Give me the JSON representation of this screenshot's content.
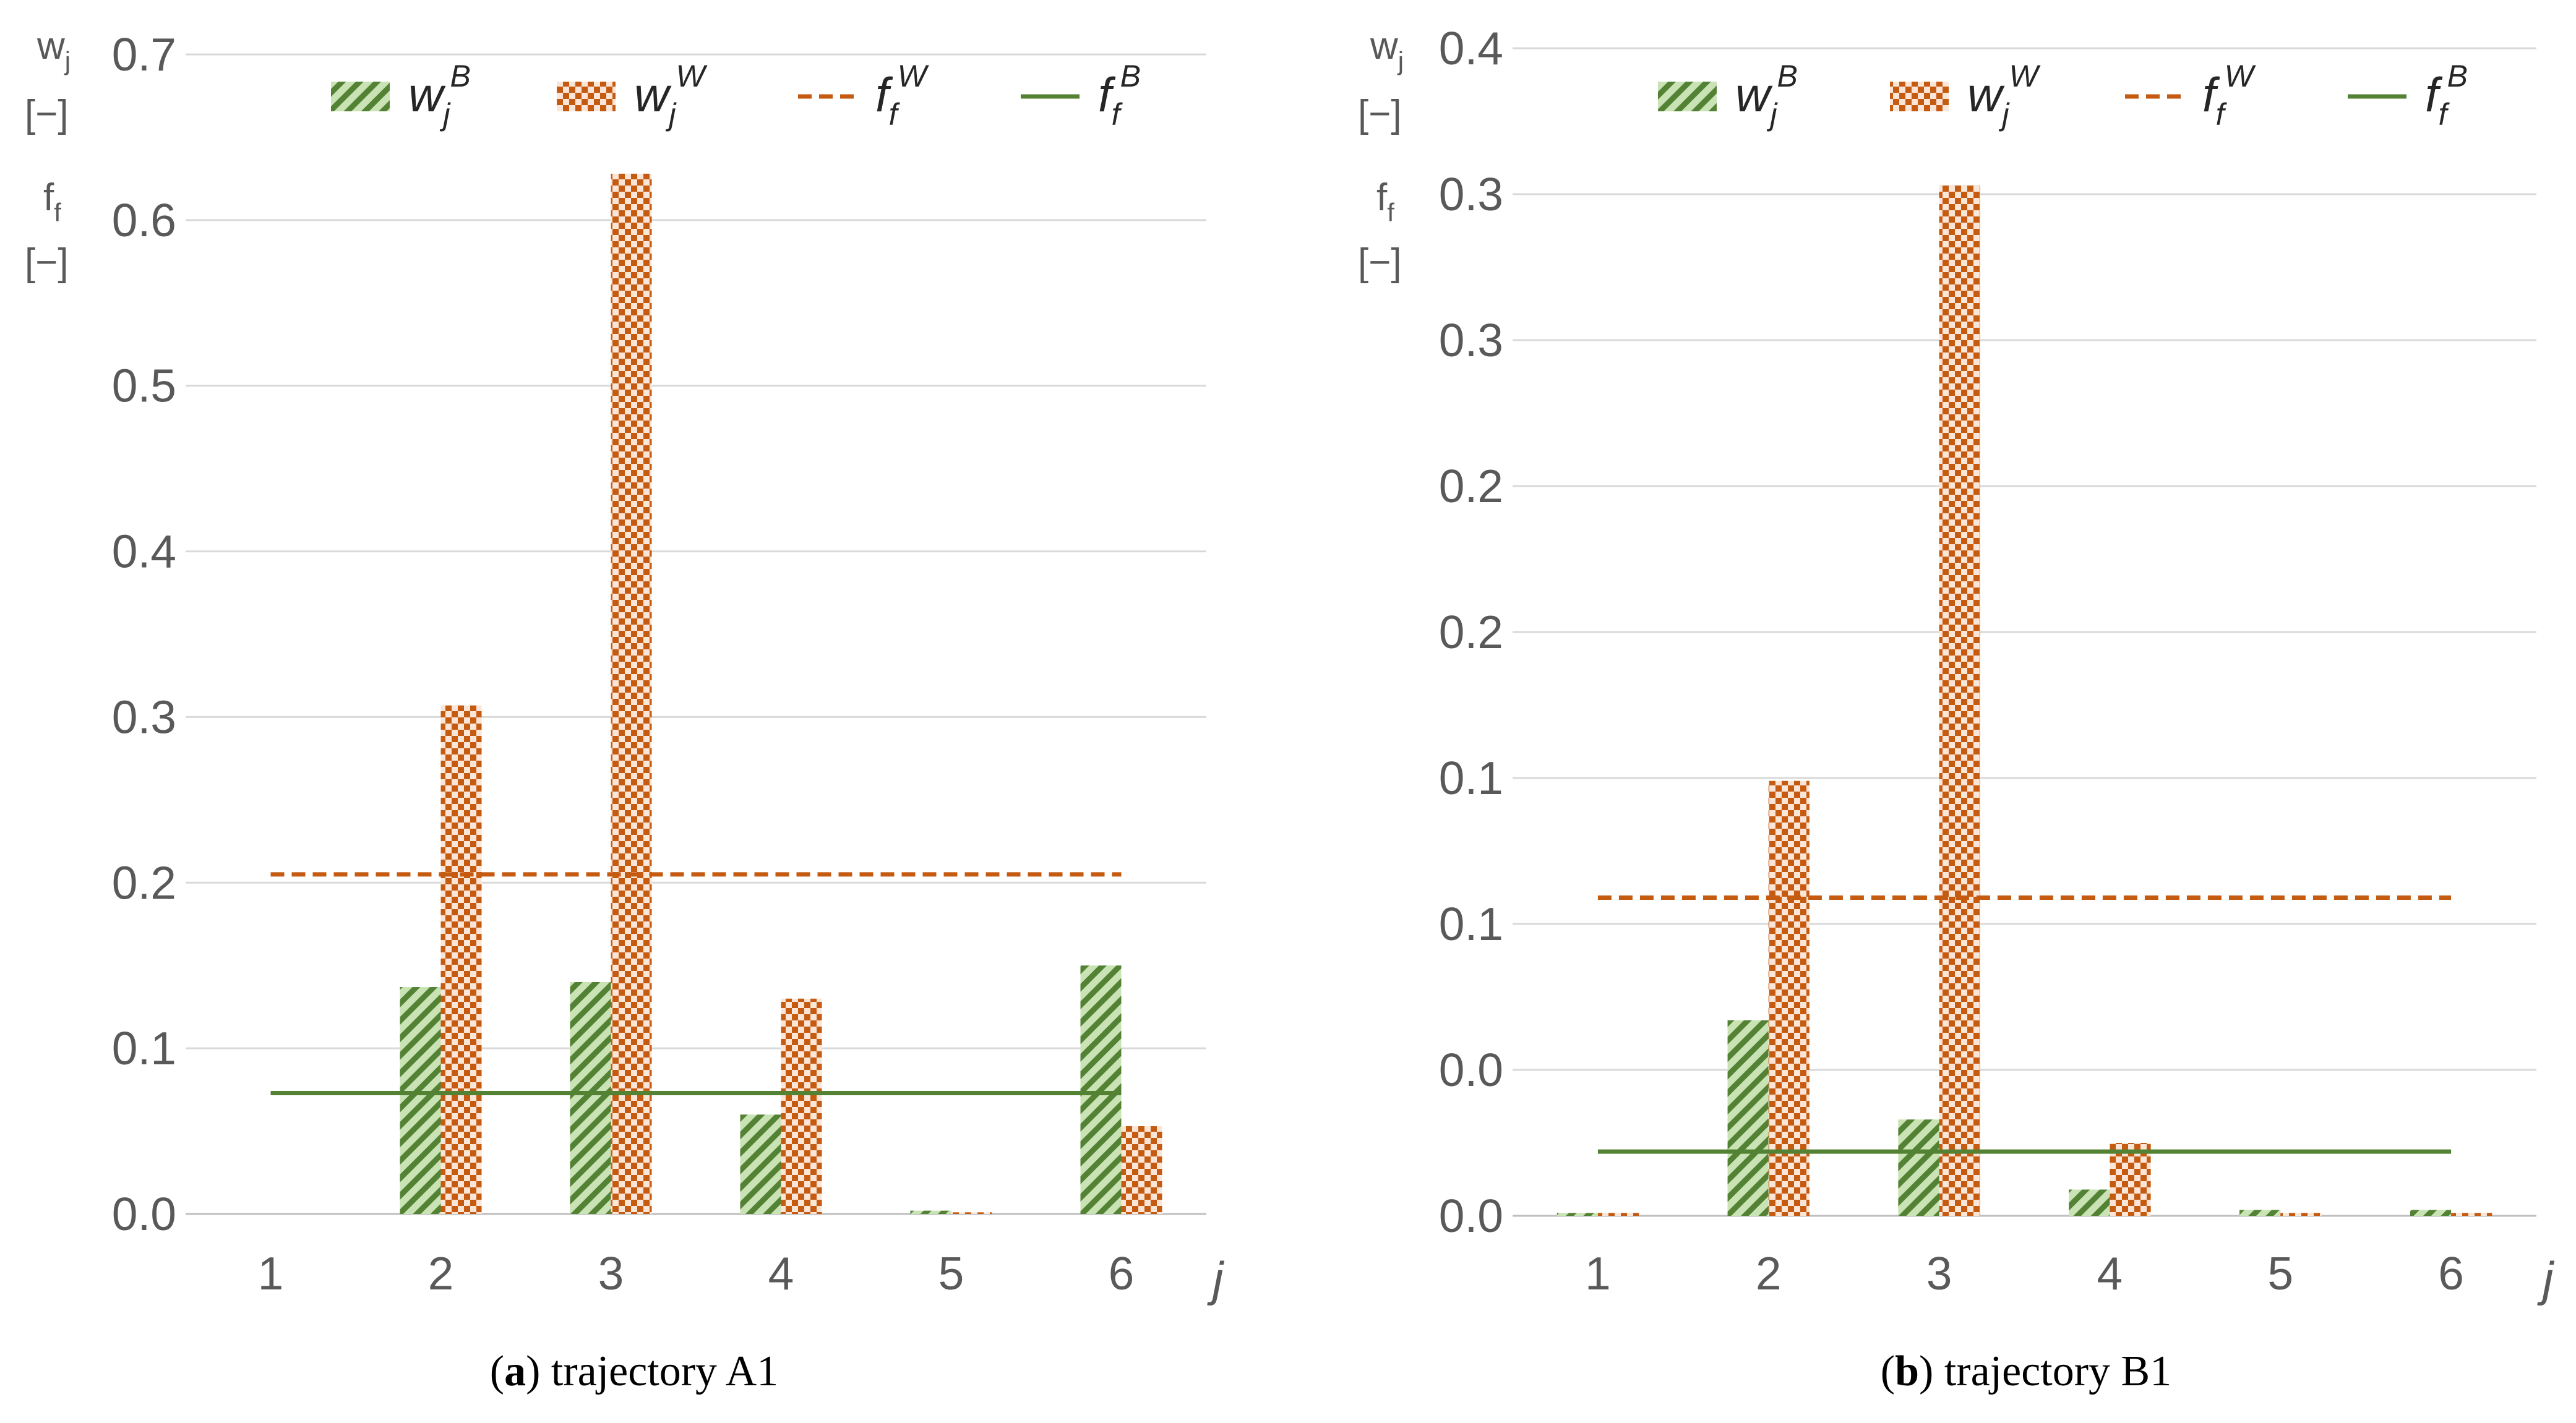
{
  "chart_data": [
    {
      "type": "bar",
      "panel_letter": "a",
      "caption_prefix": "(",
      "caption_suffix": ") trajectory A1",
      "categories": [
        "1",
        "2",
        "3",
        "4",
        "5",
        "6"
      ],
      "xlabel": "j",
      "ylabel": {
        "w": "w",
        "w_sub": "j",
        "w_unit": "[−]",
        "f": "f",
        "f_sub": "f",
        "f_unit": "[−]"
      },
      "ylim": [
        0,
        0.7
      ],
      "yticks": [
        "0.0",
        "0.1",
        "0.2",
        "0.3",
        "0.4",
        "0.5",
        "0.6",
        "0.7"
      ],
      "series": [
        {
          "name": "w_j^B",
          "label_base": "w",
          "label_sub": "j",
          "label_sup": "B",
          "kind": "bar",
          "pattern": "hatch-green",
          "values": [
            0.0,
            0.137,
            0.14,
            0.06,
            0.002,
            0.15
          ]
        },
        {
          "name": "w_j^W",
          "label_base": "w",
          "label_sub": "j",
          "label_sup": "W",
          "kind": "bar",
          "pattern": "check-orange",
          "values": [
            0.0,
            0.307,
            0.628,
            0.13,
            0.001,
            0.053
          ]
        }
      ],
      "lines": [
        {
          "name": "f_f^W",
          "label_base": "f",
          "label_sub": "f",
          "label_sup": "W",
          "value": 0.205,
          "style": "dashed",
          "color": "#C55A11"
        },
        {
          "name": "f_f^B",
          "label_base": "f",
          "label_sub": "f",
          "label_sup": "B",
          "value": 0.073,
          "style": "solid",
          "color": "#548235"
        }
      ],
      "grid": true,
      "legend_position": "top"
    },
    {
      "type": "bar",
      "panel_letter": "b",
      "caption_prefix": "(",
      "caption_suffix": ") trajectory B1",
      "categories": [
        "1",
        "2",
        "3",
        "4",
        "5",
        "6"
      ],
      "xlabel": "j",
      "ylabel": {
        "w": "w",
        "w_sub": "j",
        "w_unit": "[−]",
        "f": "f",
        "f_sub": "f",
        "f_unit": "[−]"
      },
      "ylim": [
        0,
        0.4
      ],
      "yticks": [
        "0.0",
        "0.0",
        "0.1",
        "0.1",
        "0.2",
        "0.2",
        "0.3",
        "0.3",
        "0.4"
      ],
      "series": [
        {
          "name": "w_j^B",
          "label_base": "w",
          "label_sub": "j",
          "label_sup": "B",
          "kind": "bar",
          "pattern": "hatch-green",
          "values": [
            0.001,
            0.067,
            0.033,
            0.009,
            0.002,
            0.002
          ]
        },
        {
          "name": "w_j^W",
          "label_base": "w",
          "label_sub": "j",
          "label_sup": "W",
          "kind": "bar",
          "pattern": "check-orange",
          "values": [
            0.001,
            0.149,
            0.353,
            0.025,
            0.001,
            0.001
          ]
        }
      ],
      "lines": [
        {
          "name": "f_f^W",
          "label_base": "f",
          "label_sub": "f",
          "label_sup": "W",
          "value": 0.109,
          "style": "dashed",
          "color": "#C55A11"
        },
        {
          "name": "f_f^B",
          "label_base": "f",
          "label_sub": "f",
          "label_sup": "B",
          "value": 0.022,
          "style": "solid",
          "color": "#548235"
        }
      ],
      "grid": true,
      "legend_position": "top"
    }
  ],
  "colors": {
    "grid": "#D9D9D9",
    "bar_green": "#70AD47",
    "bar_green_dark": "#548235",
    "bar_orange": "#ED7D31",
    "bar_orange_dark": "#C55A11",
    "tick": "#595959"
  }
}
